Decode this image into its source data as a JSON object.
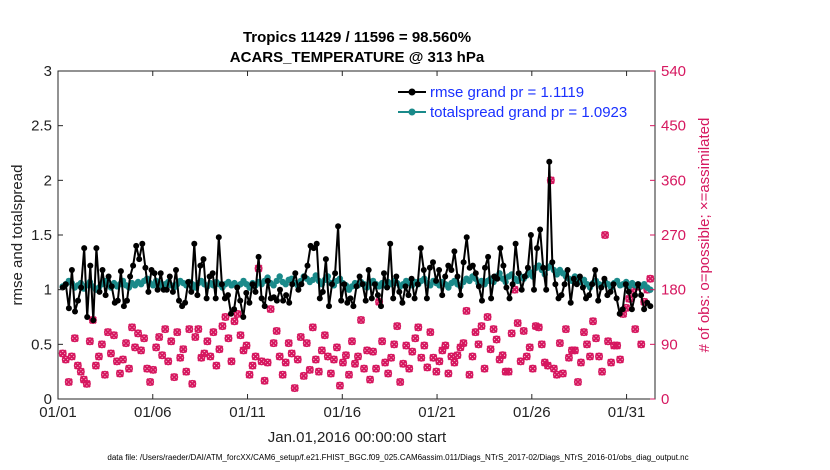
{
  "chart_data": {
    "type": "line",
    "title_line1": "Tropics 11429 / 11596 = 98.560%",
    "title_line2": "ACARS_TEMPERATURE @ 313 hPa",
    "xlabel": "Jan.01,2016 00:00:00 start",
    "ylabel": "rmse and totalspread",
    "y2label": "# of obs: o=possible; ×=assimilated",
    "footer": "data file: /Users/raeder/DAI/ATM_forcXX/CAM6_setup/f.e21.FHIST_BGC.f09_025.CAM6assim.011/Diags_NTrS_2017-02/Diags_NTrS_2016-01/obs_diag_output.nc",
    "xlim": [
      0,
      31.5
    ],
    "ylim": [
      0,
      3
    ],
    "y2lim": [
      0,
      540
    ],
    "x_ticks": [
      0,
      5,
      10,
      15,
      20,
      25,
      30
    ],
    "x_tick_labels": [
      "01/01",
      "01/06",
      "01/11",
      "01/16",
      "01/21",
      "01/26",
      "01/31"
    ],
    "y_ticks": [
      0,
      0.5,
      1,
      1.5,
      2,
      2.5,
      3
    ],
    "y_tick_labels": [
      "0",
      "0.5",
      "1",
      "1.5",
      "2",
      "2.5",
      "3"
    ],
    "y2_ticks": [
      0,
      90,
      180,
      270,
      360,
      450,
      540
    ],
    "y2_tick_labels": [
      "0",
      "90",
      "180",
      "270",
      "360",
      "450",
      "540"
    ],
    "legend": [
      {
        "label": "rmse grand pr = 1.1119",
        "color": "#000000"
      },
      {
        "label": "totalspread grand pr = 1.0923",
        "color": "#1a8a8a"
      }
    ],
    "colors": {
      "rmse": "#000000",
      "spread": "#1a8a8a",
      "obs": "#d6175f",
      "legend_text": "#1a31ff"
    },
    "series": [
      {
        "name": "rmse",
        "values": [
          1.02,
          1.05,
          0.83,
          1.18,
          0.8,
          0.9,
          1.02,
          1.38,
          0.75,
          1.22,
          0.72,
          1.38,
          0.98,
          1.18,
          0.95,
          1.12,
          1.03,
          0.88,
          0.9,
          1.17,
          0.85,
          0.9,
          1.12,
          1.22,
          1.4,
          1.28,
          1.42,
          1.2,
          0.98,
          1.18,
          1.15,
          1.0,
          1.15,
          1.0,
          1.0,
          1.12,
          0.98,
          1.18,
          0.9,
          0.85,
          0.88,
          1.07,
          0.98,
          1.42,
          0.95,
          1.22,
          1.28,
          0.92,
          1.12,
          1.15,
          0.92,
          1.48,
          1.05,
          0.92,
          0.95,
          0.78,
          0.82,
          1.02,
          0.9,
          0.75,
          0.97,
          0.88,
          1.05,
          0.98,
          1.3,
          0.92,
          0.85,
          1.08,
          0.92,
          0.93,
          0.9,
          1.0,
          0.9,
          0.95,
          0.88,
          1.05,
          1.15,
          1.0,
          1.05,
          1.12,
          1.22,
          1.4,
          1.38,
          1.42,
          0.92,
          0.98,
          1.28,
          0.85,
          1.05,
          1.15,
          1.58,
          0.9,
          1.05,
          0.88,
          0.92,
          0.85,
          1.03,
          1.12,
          1.05,
          0.9,
          1.18,
          0.92,
          1.05,
          0.95,
          0.85,
          1.15,
          1.02,
          1.42,
          0.92,
          1.12,
          0.98,
          0.88,
          1.03,
          0.95,
          1.1,
          0.92,
          1.05,
          1.38,
          1.18,
          0.92,
          1.2,
          1.25,
          1.08,
          1.18,
          0.95,
          1.12,
          1.22,
          1.18,
          1.35,
          1.12,
          0.95,
          1.25,
          1.48,
          1.2,
          1.22,
          1.15,
          1.03,
          0.9,
          1.2,
          1.3,
          0.92,
          1.12,
          1.1,
          1.38,
          1.22,
          1.02,
          0.92,
          1.05,
          1.42,
          1.15,
          1.0,
          1.12,
          1.2,
          1.5,
          1.0,
          1.38,
          1.55,
          1.2,
          1.0,
          2.17,
          1.25,
          1.05,
          0.92,
          0.95,
          1.05,
          1.18,
          0.88,
          1.1,
          1.05,
          1.12,
          1.02,
          0.92,
          0.95,
          1.05,
          1.18,
          0.9,
          1.02,
          1.1,
          0.95,
          0.98,
          1.05,
          0.92,
          0.78,
          0.82,
          1.05,
          0.98,
          0.82,
          0.95,
          1.05,
          0.95,
          0.82,
          0.88,
          0.85
        ]
      },
      {
        "name": "totalspread",
        "values": [
          1.03,
          1.05,
          1.08,
          1.06,
          1.02,
          1.04,
          1.06,
          1.01,
          1.04,
          1.07,
          1.03,
          1.0,
          1.02,
          1.05,
          1.08,
          1.05,
          1.02,
          1.06,
          1.03,
          1.05,
          1.08,
          1.04,
          1.02,
          1.06,
          1.04,
          1.07,
          1.05,
          1.08,
          1.1,
          1.06,
          1.04,
          1.08,
          1.06,
          1.03,
          1.05,
          1.07,
          1.04,
          1.02,
          1.05,
          1.08,
          1.06,
          1.04,
          1.07,
          1.05,
          1.02,
          1.06,
          1.08,
          1.05,
          1.03,
          1.06,
          1.04,
          1.07,
          1.05,
          1.02,
          1.05,
          1.07,
          1.04,
          1.06,
          1.03,
          1.05,
          1.08,
          1.05,
          1.02,
          1.06,
          1.04,
          1.07,
          1.05,
          1.08,
          1.11,
          1.06,
          1.04,
          1.08,
          1.12,
          1.07,
          1.05,
          1.09,
          1.1,
          1.06,
          1.04,
          1.08,
          1.12,
          1.1,
          1.07,
          1.09,
          1.13,
          1.08,
          1.05,
          1.09,
          1.12,
          1.06,
          1.04,
          1.08,
          1.1,
          1.06,
          1.04,
          1.0,
          1.03,
          1.06,
          1.04,
          1.07,
          1.05,
          1.02,
          1.06,
          1.08,
          1.05,
          1.03,
          1.06,
          1.04,
          1.07,
          1.05,
          1.08,
          1.06,
          1.03,
          1.05,
          1.08,
          1.06,
          1.04,
          1.07,
          1.05,
          1.08,
          1.1,
          1.06,
          1.04,
          1.08,
          1.06,
          1.04,
          1.07,
          1.05,
          1.02,
          1.06,
          1.08,
          1.05,
          1.03,
          1.07,
          1.1,
          1.08,
          1.12,
          1.1,
          1.06,
          1.08,
          1.05,
          1.08,
          1.1,
          1.07,
          1.12,
          1.15,
          1.1,
          1.07,
          1.12,
          1.14,
          1.1,
          1.08,
          1.12,
          1.1,
          1.13,
          1.16,
          1.12,
          1.2,
          1.22,
          1.18,
          1.14,
          1.2,
          1.22,
          1.18,
          1.14,
          1.18,
          1.15,
          1.12,
          1.1,
          1.08,
          1.12,
          1.1,
          1.07,
          1.09,
          1.05,
          1.02,
          1.06,
          1.08,
          1.05,
          1.04,
          1.07,
          1.05,
          1.02,
          1.06,
          1.08,
          1.04,
          1.05,
          1.07,
          1.03,
          1.06,
          1.04,
          1.05,
          1.03,
          1.05,
          1.02,
          1.0
        ]
      },
      {
        "name": "obs_count",
        "values": [
          75,
          65,
          28,
          70,
          100,
          55,
          45,
          32,
          25,
          95,
          130,
          55,
          70,
          90,
          40,
          110,
          75,
          105,
          62,
          42,
          65,
          92,
          50,
          118,
          85,
          108,
          80,
          100,
          50,
          28,
          48,
          85,
          102,
          72,
          115,
          62,
          95,
          36,
          110,
          68,
          82,
          45,
          115,
          25,
          102,
          115,
          68,
          75,
          95,
          70,
          110,
          55,
          82,
          120,
          135,
          100,
          62,
          128,
          140,
          105,
          80,
          88,
          40,
          55,
          70,
          215,
          62,
          30,
          60,
          148,
          92,
          112,
          70,
          40,
          60,
          92,
          75,
          18,
          65,
          102,
          38,
          92,
          48,
          118,
          65,
          45,
          80,
          105,
          70,
          42,
          65,
          85,
          22,
          60,
          72,
          40,
          95,
          58,
          70,
          130,
          50,
          80,
          32,
          78,
          50,
          160,
          95,
          60,
          42,
          68,
          90,
          120,
          28,
          58,
          88,
          50,
          78,
          100,
          118,
          68,
          88,
          52,
          110,
          68,
          45,
          62,
          80,
          88,
          42,
          70,
          60,
          72,
          85,
          92,
          145,
          40,
          70,
          110,
          90,
          120,
          50,
          135,
          82,
          115,
          98,
          65,
          72,
          45,
          45,
          108,
          180,
          125,
          62,
          112,
          70,
          85,
          50,
          120,
          118,
          90,
          60,
          55,
          360,
          50,
          40,
          92,
          42,
          115,
          68,
          80,
          80,
          28,
          60,
          110,
          90,
          70,
          128,
          100,
          70,
          45,
          270,
          95,
          60,
          88,
          88,
          65,
          140,
          150,
          165,
          178,
          115,
          185,
          90,
          160,
          180,
          198
        ]
      }
    ]
  }
}
